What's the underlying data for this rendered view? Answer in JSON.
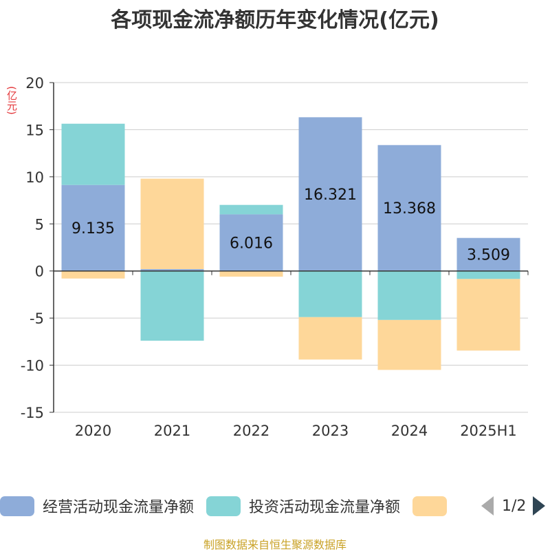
{
  "chart_data": {
    "type": "bar",
    "title": "各项现金流净额历年变化情况(亿元)",
    "ylabel": "(亿元)",
    "categories": [
      "2020",
      "2021",
      "2022",
      "2023",
      "2024",
      "2025H1"
    ],
    "ylim": [
      -15,
      20
    ],
    "yticks": [
      "20",
      "15",
      "10",
      "5",
      "0",
      "-5",
      "-10",
      "-15"
    ],
    "stacked": true,
    "grid": true,
    "series": [
      {
        "name": "经营活动现金流量净额",
        "color": "#8eacd9",
        "values": [
          9.135,
          0.2,
          6.016,
          16.321,
          13.368,
          3.509
        ],
        "labels": [
          "9.135",
          "",
          "6.016",
          "16.321",
          "13.368",
          "3.509"
        ]
      },
      {
        "name": "投资活动现金流量净额",
        "color": "#85d4d6",
        "values": [
          6.5,
          -7.4,
          1.0,
          -4.9,
          -5.2,
          -0.85
        ]
      },
      {
        "name": "",
        "color": "#fed799",
        "values": [
          -0.8,
          9.6,
          -0.6,
          -4.5,
          -5.3,
          -7.6
        ]
      }
    ]
  },
  "legend": {
    "items": [
      {
        "label": "经营活动现金流量净额",
        "color": "#8eacd9"
      },
      {
        "label": "投资活动现金流量净额",
        "color": "#85d4d6"
      },
      {
        "label": "",
        "color": "#fed799"
      }
    ],
    "page": "1/2"
  },
  "source": "制图数据来自恒生聚源数据库"
}
